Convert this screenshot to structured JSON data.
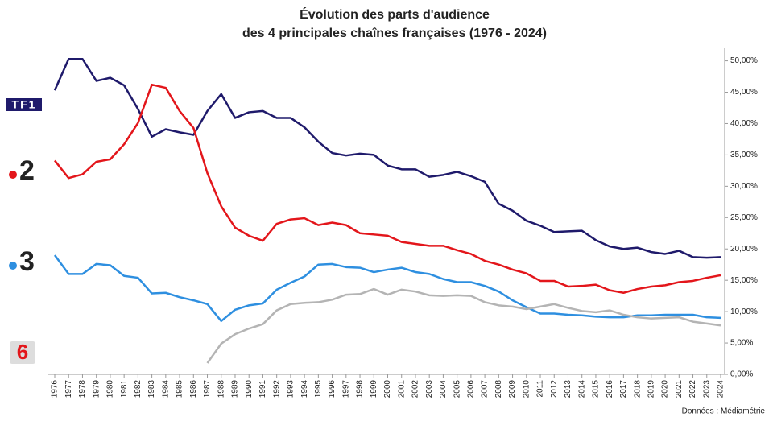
{
  "chart_data": {
    "type": "line",
    "title": [
      "Évolution des parts d'audience",
      "des 4 principales chaînes françaises (1976 - 2024)"
    ],
    "source": "Données : Médiamétrie",
    "x": [
      1976,
      1977,
      1978,
      1979,
      1980,
      1981,
      1982,
      1983,
      1984,
      1985,
      1986,
      1987,
      1988,
      1989,
      1990,
      1991,
      1992,
      1993,
      1994,
      1995,
      1996,
      1997,
      1998,
      1999,
      2000,
      2001,
      2002,
      2003,
      2004,
      2005,
      2006,
      2007,
      2008,
      2009,
      2010,
      2011,
      2012,
      2013,
      2014,
      2015,
      2016,
      2017,
      2018,
      2019,
      2020,
      2021,
      2022,
      2023,
      2024
    ],
    "xlim": [
      1976,
      2024
    ],
    "ylim": [
      0,
      52
    ],
    "yticks": [
      {
        "value": 0,
        "label": "0,00%"
      },
      {
        "value": 5,
        "label": "5,00%"
      },
      {
        "value": 10,
        "label": "10,00%"
      },
      {
        "value": 15,
        "label": "15,00%"
      },
      {
        "value": 20,
        "label": "20,00%"
      },
      {
        "value": 25,
        "label": "25,00%"
      },
      {
        "value": 30,
        "label": "30,00%"
      },
      {
        "value": 35,
        "label": "35,00%"
      },
      {
        "value": 40,
        "label": "40,00%"
      },
      {
        "value": 45,
        "label": "45,00%"
      },
      {
        "value": 50,
        "label": "50,00%"
      }
    ],
    "y_axis_side": "right",
    "grid": false,
    "series": [
      {
        "name": "TF1",
        "color": "#1f1a6b",
        "values": [
          45.3,
          50.3,
          50.3,
          46.8,
          47.3,
          46.1,
          42.3,
          37.9,
          39.1,
          38.6,
          38.2,
          42.0,
          44.7,
          40.9,
          41.8,
          42.0,
          40.9,
          40.9,
          39.4,
          37.1,
          35.3,
          34.9,
          35.2,
          35.0,
          33.3,
          32.7,
          32.7,
          31.5,
          31.8,
          32.3,
          31.6,
          30.7,
          27.2,
          26.1,
          24.5,
          23.7,
          22.7,
          22.8,
          22.9,
          21.4,
          20.4,
          20.0,
          20.2,
          19.5,
          19.2,
          19.7,
          18.7,
          18.6,
          18.7
        ]
      },
      {
        "name": "2",
        "color": "#e3161b",
        "values": [
          34.1,
          31.3,
          31.9,
          33.9,
          34.3,
          36.7,
          40.1,
          46.2,
          45.7,
          42.0,
          39.3,
          32.1,
          26.8,
          23.4,
          22.1,
          21.3,
          24.0,
          24.7,
          24.9,
          23.8,
          24.2,
          23.8,
          22.5,
          22.3,
          22.1,
          21.1,
          20.8,
          20.5,
          20.5,
          19.8,
          19.2,
          18.1,
          17.5,
          16.7,
          16.1,
          14.9,
          14.9,
          14.0,
          14.1,
          14.3,
          13.4,
          13.0,
          13.6,
          14.0,
          14.2,
          14.7,
          14.9,
          15.4,
          15.8
        ]
      },
      {
        "name": "3",
        "color": "#2e8fe0",
        "values": [
          19.0,
          16.0,
          16.0,
          17.6,
          17.4,
          15.7,
          15.4,
          12.9,
          13.0,
          12.3,
          11.8,
          11.2,
          8.5,
          10.3,
          11.0,
          11.3,
          13.5,
          14.6,
          15.6,
          17.5,
          17.6,
          17.1,
          17.0,
          16.3,
          16.7,
          17.0,
          16.3,
          16.0,
          15.2,
          14.7,
          14.7,
          14.1,
          13.2,
          11.8,
          10.7,
          9.7,
          9.7,
          9.5,
          9.4,
          9.2,
          9.1,
          9.1,
          9.4,
          9.4,
          9.5,
          9.5,
          9.5,
          9.1,
          9.0
        ]
      },
      {
        "name": "6",
        "color": "#b4b4b4",
        "values": [
          null,
          null,
          null,
          null,
          null,
          null,
          null,
          null,
          null,
          null,
          null,
          1.8,
          4.9,
          6.4,
          7.3,
          8.0,
          10.2,
          11.2,
          11.4,
          11.5,
          11.9,
          12.7,
          12.8,
          13.6,
          12.7,
          13.5,
          13.2,
          12.6,
          12.5,
          12.6,
          12.5,
          11.5,
          11.0,
          10.8,
          10.4,
          10.8,
          11.2,
          10.6,
          10.1,
          9.9,
          10.2,
          9.5,
          9.1,
          8.9,
          9.0,
          9.1,
          8.4,
          8.1,
          7.8
        ]
      }
    ]
  }
}
